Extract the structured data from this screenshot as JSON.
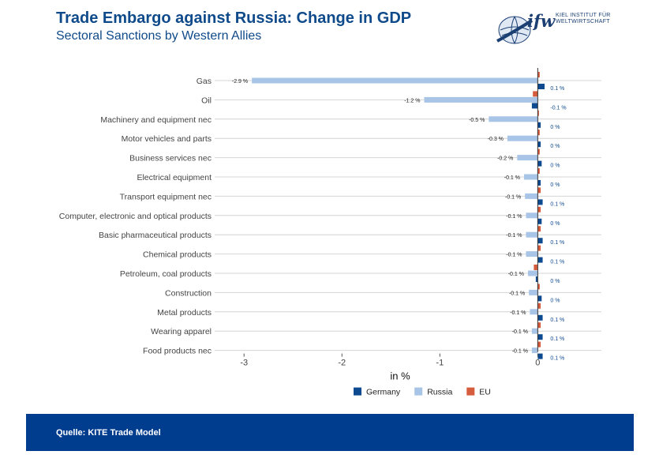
{
  "header": {
    "title": "Trade Embargo against Russia: Change in GDP",
    "subtitle": "Sectoral Sanctions by Western Allies"
  },
  "logo": {
    "wordmark": "ifw",
    "line1": "KIEL INSTITUT FÜR",
    "line2": "WELTWIRTSCHAFT"
  },
  "footer": {
    "source": "Quelle: KITE Trade Model"
  },
  "colors": {
    "Germany": "#0d4a90",
    "Russia": "#a8c4e6",
    "EU": "#d55c3c",
    "footer": "#003d8f",
    "title": "#0f4a8a"
  },
  "chart_data": {
    "type": "bar",
    "orientation": "horizontal",
    "xlabel": "in %",
    "xlim": [
      -3.3,
      0.65
    ],
    "xticks": [
      -3,
      -2,
      -1,
      0
    ],
    "grid": true,
    "legend_position": "bottom",
    "categories": [
      "Gas",
      "Oil",
      "Machinery and equipment nec",
      "Motor vehicles and parts",
      "Business services nec",
      "Electrical equipment",
      "Transport equipment nec",
      "Computer, electronic and optical products",
      "Basic pharmaceutical products",
      "Chemical products",
      "Petroleum, coal products",
      "Construction",
      "Metal products",
      "Wearing apparel",
      "Food products nec"
    ],
    "series": [
      {
        "name": "Germany",
        "values": [
          0.07,
          -0.06,
          0.03,
          0.03,
          0.04,
          0.03,
          0.05,
          0.04,
          0.05,
          0.05,
          -0.02,
          0.04,
          0.05,
          0.05,
          0.05
        ],
        "labels": [
          "0.1 %",
          "-0.1 %",
          "0 %",
          "0 %",
          "0 %",
          "0 %",
          "0.1 %",
          "0 %",
          "0.1 %",
          "0.1 %",
          "0 %",
          "0 %",
          "0.1 %",
          "0.1 %",
          "0.1 %"
        ]
      },
      {
        "name": "Russia",
        "values": [
          -2.92,
          -1.16,
          -0.5,
          -0.31,
          -0.21,
          -0.14,
          -0.13,
          -0.12,
          -0.12,
          -0.12,
          -0.1,
          -0.09,
          -0.08,
          -0.06,
          -0.06
        ],
        "labels": [
          "-2.9 %",
          "-1.2 %",
          "-0.5 %",
          "-0.3 %",
          "-0.2 %",
          "-0.1 %",
          "-0.1 %",
          "-0.1 %",
          "-0.1 %",
          "-0.1 %",
          "-0.1 %",
          "-0.1 %",
          "-0.1 %",
          "-0.1 %",
          "-0.1 %"
        ]
      },
      {
        "name": "EU",
        "values": [
          0.02,
          -0.05,
          0.01,
          0.02,
          0.02,
          0.02,
          0.03,
          0.03,
          0.03,
          0.03,
          -0.04,
          0.02,
          0.03,
          0.03,
          0.03
        ],
        "labels": []
      }
    ]
  }
}
